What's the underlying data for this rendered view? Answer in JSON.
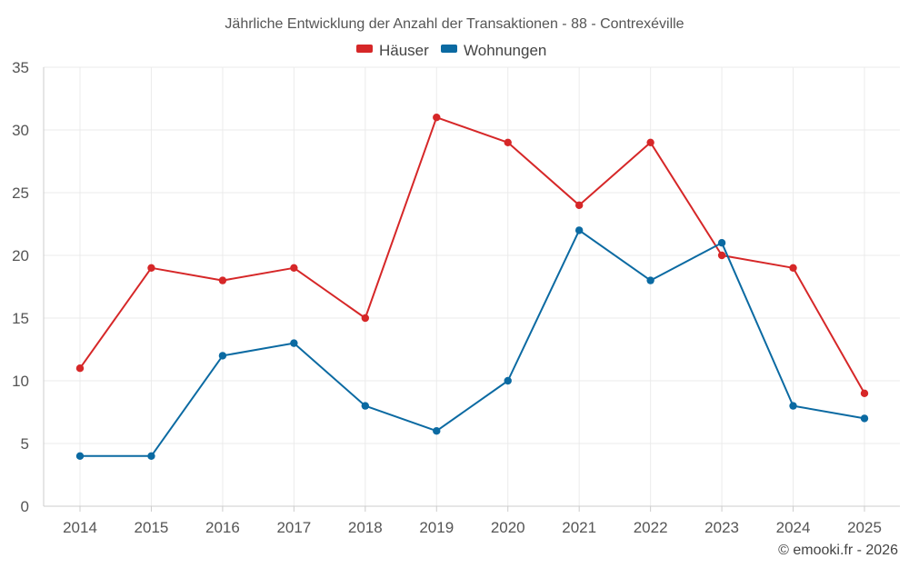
{
  "chart_data": {
    "type": "line",
    "title": "Jährliche Entwicklung der Anzahl der Transaktionen - 88 - Contrexéville",
    "x": [
      "2014",
      "2015",
      "2016",
      "2017",
      "2018",
      "2019",
      "2020",
      "2021",
      "2022",
      "2023",
      "2024",
      "2025"
    ],
    "series": [
      {
        "name": "Häuser",
        "color": "#d62728",
        "values": [
          11,
          19,
          18,
          19,
          15,
          31,
          29,
          24,
          29,
          20,
          19,
          9
        ]
      },
      {
        "name": "Wohnungen",
        "color": "#0b6aa2",
        "values": [
          4,
          4,
          12,
          13,
          8,
          6,
          10,
          22,
          18,
          21,
          8,
          7
        ]
      }
    ],
    "ylim": [
      0,
      35
    ],
    "yticks": [
      0,
      5,
      10,
      15,
      20,
      25,
      30,
      35
    ],
    "grid": true,
    "legend": "top-center",
    "xlabel": "",
    "ylabel": ""
  },
  "credit": "© emooki.fr - 2026"
}
